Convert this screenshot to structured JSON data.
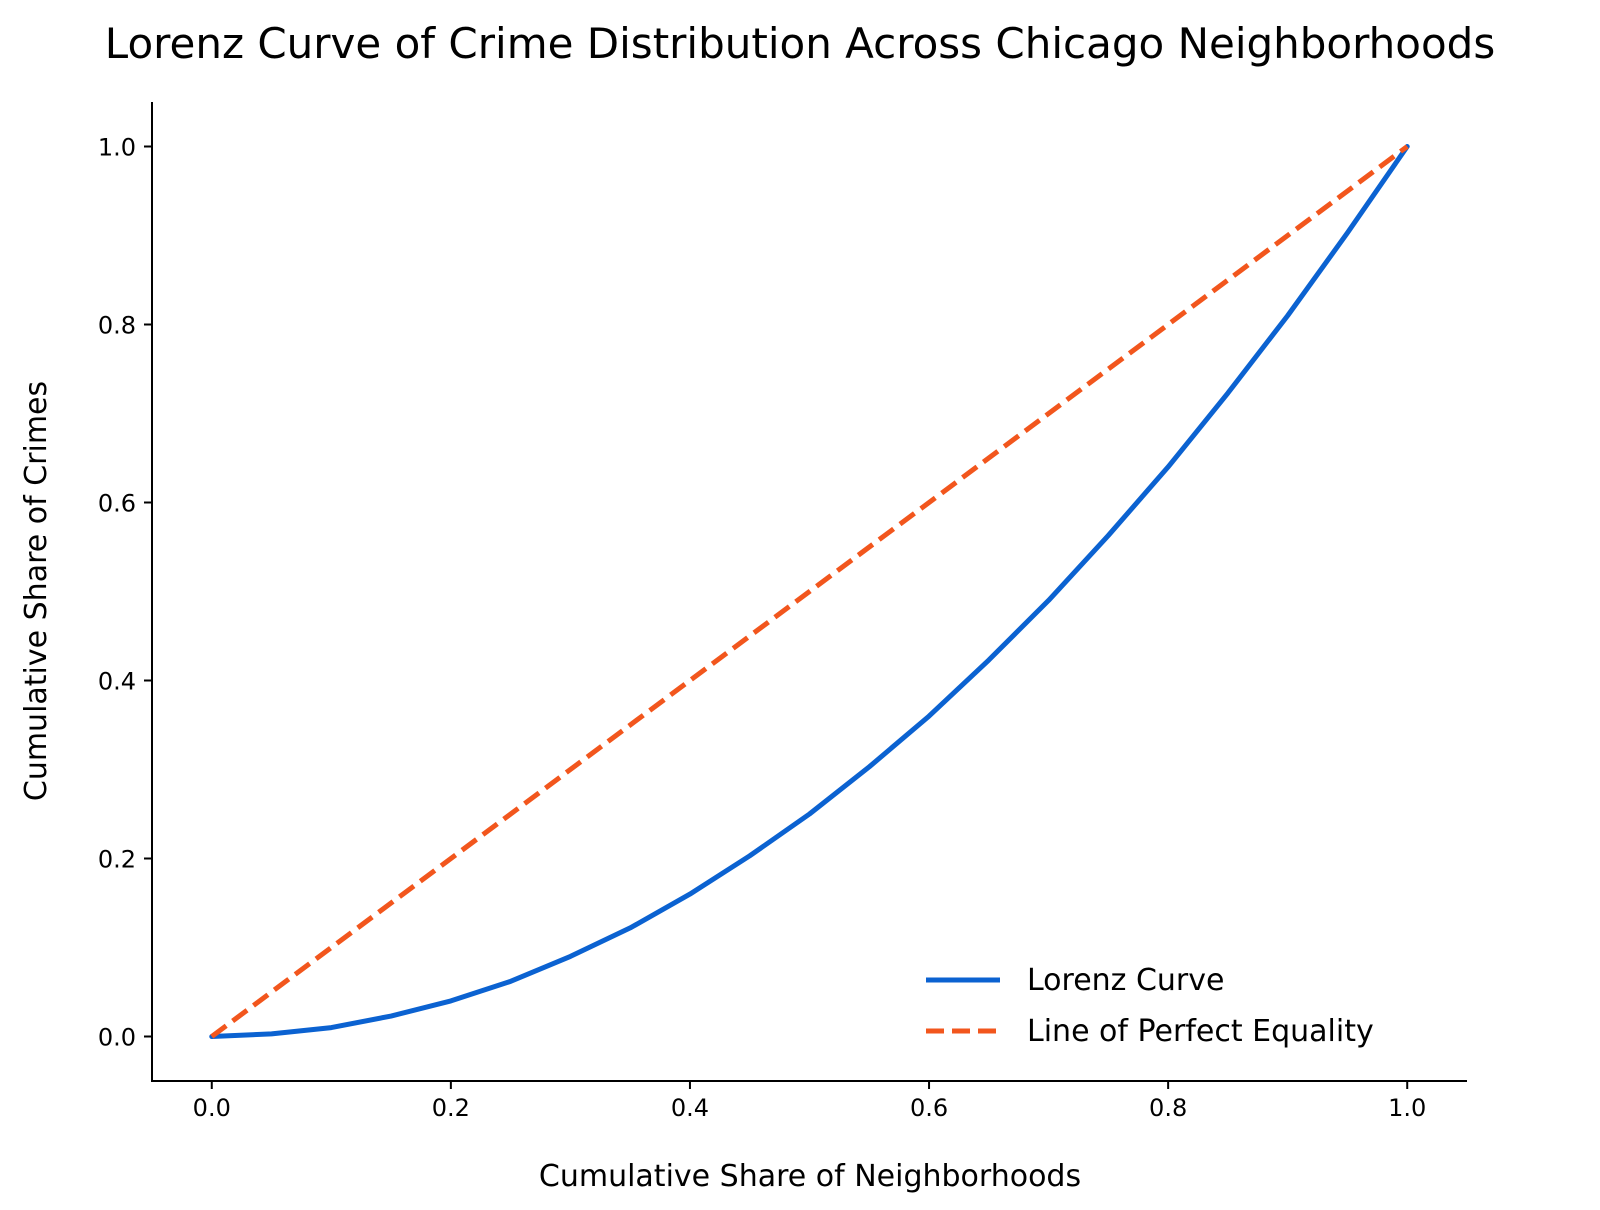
{
  "chart_data": {
    "type": "line",
    "title": "Lorenz Curve of Crime Distribution Across Chicago Neighborhoods",
    "xlabel": "Cumulative Share of Neighborhoods",
    "ylabel": "Cumulative Share of Crimes",
    "xlim": [
      -0.05,
      1.05
    ],
    "ylim": [
      -0.05,
      1.05
    ],
    "xticks": [
      0.0,
      0.2,
      0.4,
      0.6,
      0.8,
      1.0
    ],
    "xtick_labels": [
      "0.0",
      "0.2",
      "0.4",
      "0.6",
      "0.8",
      "1.0"
    ],
    "yticks": [
      0.0,
      0.2,
      0.4,
      0.6,
      0.8,
      1.0
    ],
    "ytick_labels": [
      "0.0",
      "0.2",
      "0.4",
      "0.6",
      "0.8",
      "1.0"
    ],
    "grid": false,
    "legend_position": "bottom-right",
    "series": [
      {
        "name": "Lorenz Curve",
        "style": "solid",
        "color": "#0b62d1",
        "x": [
          0.0,
          0.05,
          0.1,
          0.15,
          0.2,
          0.25,
          0.3,
          0.35,
          0.4,
          0.45,
          0.5,
          0.55,
          0.6,
          0.65,
          0.7,
          0.75,
          0.8,
          0.85,
          0.9,
          0.95,
          1.0
        ],
        "y": [
          0.0,
          0.003,
          0.01,
          0.023,
          0.04,
          0.062,
          0.09,
          0.122,
          0.16,
          0.203,
          0.25,
          0.303,
          0.36,
          0.423,
          0.49,
          0.563,
          0.64,
          0.723,
          0.81,
          0.903,
          1.0
        ]
      },
      {
        "name": "Line of Perfect Equality",
        "style": "dashed",
        "color": "#f2561d",
        "x": [
          0.0,
          1.0
        ],
        "y": [
          0.0,
          1.0
        ]
      }
    ]
  }
}
